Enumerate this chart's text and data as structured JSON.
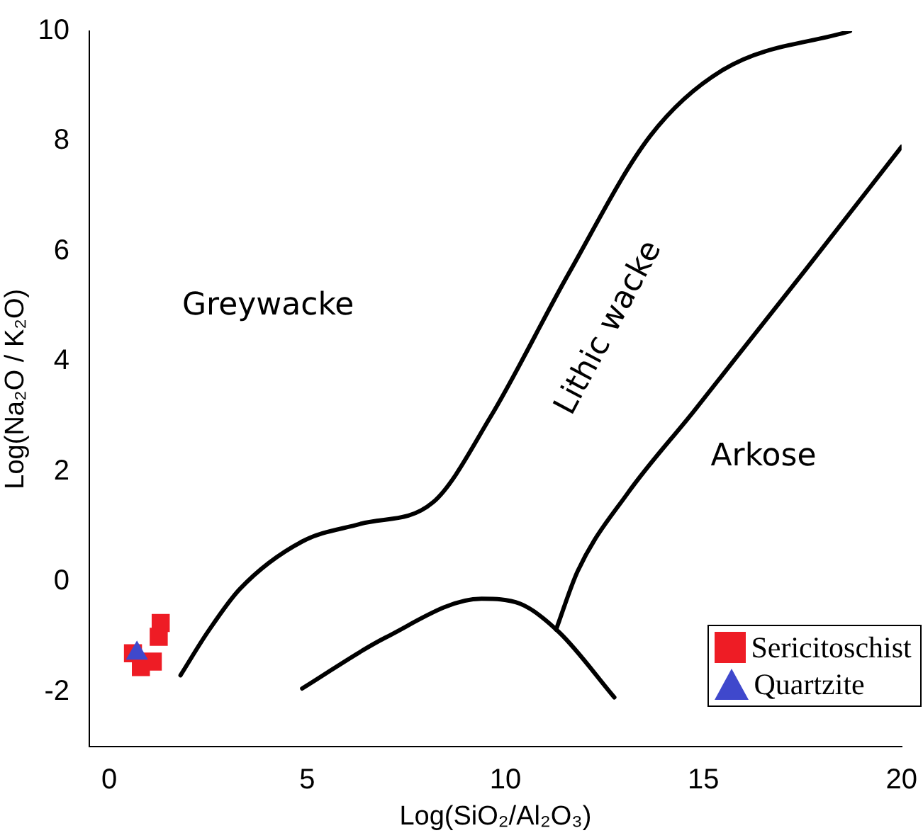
{
  "chart_data": {
    "type": "scatter",
    "xlabel": "Log(SiO₂/Al₂O₃)",
    "ylabel": "Log(Na₂O / K₂O)",
    "xlim": [
      -0.5,
      20
    ],
    "ylim": [
      -3,
      10
    ],
    "xticks": [
      0,
      5,
      10,
      15,
      20
    ],
    "yticks": [
      -2,
      0,
      2,
      4,
      6,
      8,
      10
    ],
    "grid": false,
    "legend": "bottom right",
    "series": [
      {
        "name": "Sericitoschist",
        "color": "#ee1c25",
        "marker": "square",
        "x": [
          1.3,
          1.25,
          0.6,
          1.1,
          0.8
        ],
        "values": [
          -0.75,
          -1.0,
          -1.3,
          -1.45,
          -1.55
        ]
      },
      {
        "name": "Quartzite",
        "color": "#3f48cc",
        "marker": "triangle",
        "x": [
          0.7
        ],
        "values": [
          -1.3
        ]
      },
      {
        "type": "line",
        "color": "#000000",
        "marker": "none",
        "x": [
          1.8,
          2.5,
          3.3,
          4.87,
          6.34,
          8.17,
          9.63,
          11.6,
          13.66,
          15.5,
          18.7
        ],
        "values": [
          -1.7,
          -0.9,
          -0.13,
          0.73,
          1.05,
          1.44,
          3.0,
          5.6,
          8.1,
          9.3,
          10.0
        ]
      },
      {
        "type": "line",
        "color": "#000000",
        "marker": "none",
        "x": [
          4.87,
          6.96,
          9.4,
          10.37,
          11.36,
          12.75
        ],
        "values": [
          -1.94,
          -1.02,
          -0.31,
          -0.4,
          -0.92,
          -2.1
        ]
      },
      {
        "type": "line",
        "color": "#000000",
        "marker": "none",
        "x": [
          11.28,
          11.83,
          13.08,
          14.76,
          17.58,
          20
        ],
        "values": [
          -0.87,
          0.2,
          1.6,
          3.1,
          5.67,
          7.9
        ]
      }
    ],
    "annotations": [
      "Greywacke",
      "Lithic wacke",
      "Arkose"
    ]
  }
}
